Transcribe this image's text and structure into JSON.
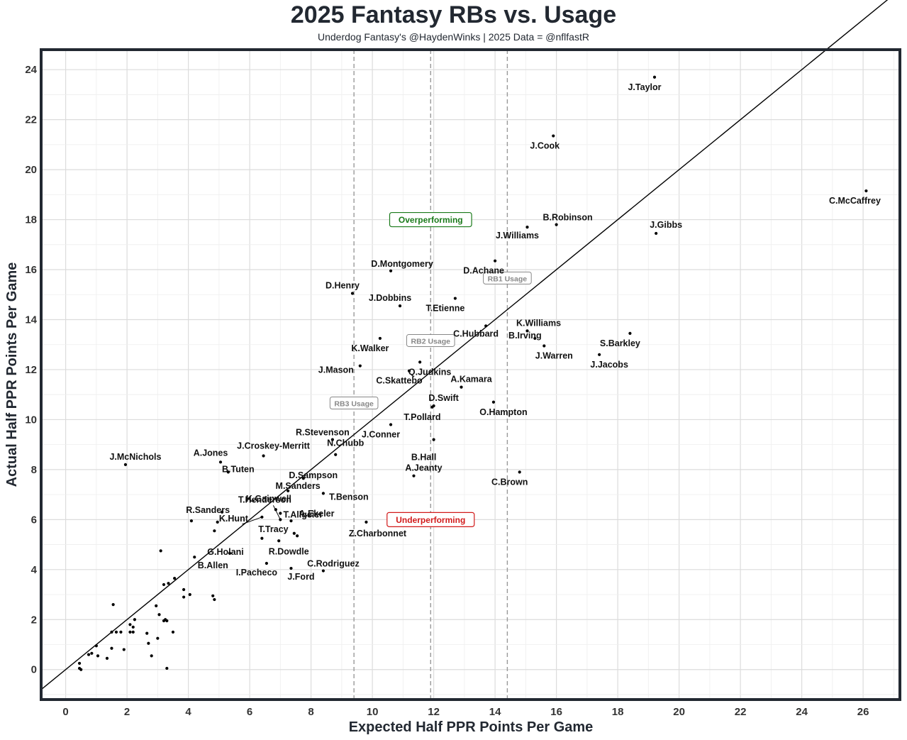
{
  "header": {
    "title": "2025 Fantasy RBs vs. Usage",
    "subtitle": "Underdog Fantasy's @HaydenWinks | 2025 Data = @nflfastR"
  },
  "chart_data": {
    "type": "scatter",
    "title": "2025 Fantasy RBs vs. Usage",
    "subtitle": "Underdog Fantasy's @HaydenWinks | 2025 Data = @nflfastR",
    "xlabel": "Expected Half PPR Points Per Game",
    "ylabel": "Actual Half PPR Points Per Game",
    "xlim": [
      -0.8,
      27.2
    ],
    "ylim": [
      -1.2,
      24.8
    ],
    "xticks": [
      0,
      2,
      4,
      6,
      8,
      10,
      12,
      14,
      16,
      18,
      20,
      22,
      24,
      26
    ],
    "yticks": [
      0,
      2,
      4,
      6,
      8,
      10,
      12,
      14,
      16,
      18,
      20,
      22,
      24
    ],
    "grid": true,
    "reference_line": {
      "slope": 1,
      "intercept": 0
    },
    "usage_thresholds": [
      {
        "label": "RB3 Usage",
        "x": 9.4
      },
      {
        "label": "RB2 Usage",
        "x": 11.9
      },
      {
        "label": "RB1 Usage",
        "x": 14.4
      }
    ],
    "annotations": [
      {
        "text": "Overperforming",
        "color": "#1a7a1a",
        "x": 11.9,
        "y": 18.0
      },
      {
        "text": "Underperforming",
        "color": "#d11a1a",
        "x": 11.9,
        "y": 6.0
      }
    ],
    "points": [
      {
        "name": "J.Taylor",
        "x": 19.2,
        "y": 23.7
      },
      {
        "name": "J.Cook",
        "x": 15.9,
        "y": 21.35
      },
      {
        "name": "C.McCaffrey",
        "x": 26.1,
        "y": 19.15
      },
      {
        "name": "B.Robinson",
        "x": 16.0,
        "y": 17.8
      },
      {
        "name": "J.Williams",
        "x": 15.05,
        "y": 17.7
      },
      {
        "name": "J.Gibbs",
        "x": 19.25,
        "y": 17.45
      },
      {
        "name": "D.Achane",
        "x": 14.0,
        "y": 16.35
      },
      {
        "name": "D.Montgomery",
        "x": 10.6,
        "y": 15.95
      },
      {
        "name": "D.Henry",
        "x": 9.35,
        "y": 15.05
      },
      {
        "name": "T.Etienne",
        "x": 12.7,
        "y": 14.85
      },
      {
        "name": "J.Dobbins",
        "x": 10.9,
        "y": 14.55
      },
      {
        "name": "C.Hubbard",
        "x": 13.7,
        "y": 13.75
      },
      {
        "name": "K.Williams",
        "x": 15.05,
        "y": 13.55
      },
      {
        "name": "S.Barkley",
        "x": 18.4,
        "y": 13.45
      },
      {
        "name": "B.Irving",
        "x": 15.3,
        "y": 13.25
      },
      {
        "name": "K.Walker",
        "x": 10.25,
        "y": 13.25
      },
      {
        "name": "J.Warren",
        "x": 15.6,
        "y": 12.95
      },
      {
        "name": "J.Jacobs",
        "x": 17.4,
        "y": 12.6
      },
      {
        "name": "Q.Judkins",
        "x": 11.55,
        "y": 12.3
      },
      {
        "name": "J.Mason",
        "x": 9.6,
        "y": 12.15
      },
      {
        "name": "C.Skattebo",
        "x": 11.2,
        "y": 11.95
      },
      {
        "name": "A.Kamara",
        "x": 12.9,
        "y": 11.3
      },
      {
        "name": "O.Hampton",
        "x": 13.95,
        "y": 10.7
      },
      {
        "name": "D.Swift",
        "x": 12.0,
        "y": 10.55
      },
      {
        "name": "T.Pollard",
        "x": 11.95,
        "y": 10.5
      },
      {
        "name": "J.Conner",
        "x": 10.6,
        "y": 9.8
      },
      {
        "name": "R.Stevenson",
        "x": 8.7,
        "y": 9.2
      },
      {
        "name": "B.Hall",
        "x": 12.0,
        "y": 9.2
      },
      {
        "name": "N.Chubb",
        "x": 8.8,
        "y": 8.6
      },
      {
        "name": "J.Croskey-Merritt",
        "x": 6.45,
        "y": 8.55
      },
      {
        "name": "A.Jones",
        "x": 5.05,
        "y": 8.3
      },
      {
        "name": "J.McNichols",
        "x": 1.95,
        "y": 8.2
      },
      {
        "name": "B.Tuten",
        "x": 5.3,
        "y": 7.9
      },
      {
        "name": "C.Brown",
        "x": 14.8,
        "y": 7.9
      },
      {
        "name": "A.Jeanty",
        "x": 11.35,
        "y": 7.75
      },
      {
        "name": "D.Sampson",
        "x": 7.75,
        "y": 7.65
      },
      {
        "name": "M.Sanders",
        "x": 7.25,
        "y": 7.15
      },
      {
        "name": "T.Benson",
        "x": 8.4,
        "y": 7.05
      },
      {
        "name": "T.Henderson",
        "x": 7.0,
        "y": 6.0
      },
      {
        "name": "K.Gainwell",
        "x": 6.85,
        "y": 6.4
      },
      {
        "name": "R.Sanders",
        "x": 5.1,
        "y": 6.3
      },
      {
        "name": "T.Allgeier",
        "x": 7.0,
        "y": 6.25
      },
      {
        "name": "K.Hunt",
        "x": 6.4,
        "y": 6.1
      },
      {
        "name": "A.Ekeler",
        "x": 7.35,
        "y": 5.95
      },
      {
        "name": "Z.Charbonnet",
        "x": 9.8,
        "y": 5.9
      },
      {
        "name": "T.Tracy",
        "x": 6.4,
        "y": 5.25
      },
      {
        "name": "R.Dowdle",
        "x": 6.95,
        "y": 5.15
      },
      {
        "name": "G.Holani",
        "x": 5.35,
        "y": 4.65
      },
      {
        "name": "B.Allen",
        "x": 4.2,
        "y": 4.5
      },
      {
        "name": "I.Pacheco",
        "x": 6.55,
        "y": 4.25
      },
      {
        "name": "C.Rodriguez",
        "x": 8.4,
        "y": 3.95
      },
      {
        "name": "J.Ford",
        "x": 7.35,
        "y": 4.05
      },
      {
        "name": "",
        "x": 4.1,
        "y": 5.95
      },
      {
        "name": "",
        "x": 4.85,
        "y": 5.55
      },
      {
        "name": "",
        "x": 4.95,
        "y": 5.9
      },
      {
        "name": "",
        "x": 7.45,
        "y": 5.45
      },
      {
        "name": "",
        "x": 7.55,
        "y": 5.35
      },
      {
        "name": "",
        "x": 3.1,
        "y": 4.75
      },
      {
        "name": "",
        "x": 3.55,
        "y": 3.65
      },
      {
        "name": "",
        "x": 3.2,
        "y": 3.4
      },
      {
        "name": "",
        "x": 3.35,
        "y": 3.45
      },
      {
        "name": "",
        "x": 3.85,
        "y": 3.2
      },
      {
        "name": "",
        "x": 3.85,
        "y": 2.9
      },
      {
        "name": "",
        "x": 4.05,
        "y": 3.0
      },
      {
        "name": "",
        "x": 4.8,
        "y": 2.95
      },
      {
        "name": "",
        "x": 4.85,
        "y": 2.8
      },
      {
        "name": "",
        "x": 1.55,
        "y": 2.6
      },
      {
        "name": "",
        "x": 2.95,
        "y": 2.55
      },
      {
        "name": "",
        "x": 3.05,
        "y": 2.2
      },
      {
        "name": "",
        "x": 2.25,
        "y": 2.0
      },
      {
        "name": "",
        "x": 3.2,
        "y": 1.95
      },
      {
        "name": "",
        "x": 3.25,
        "y": 2.0
      },
      {
        "name": "",
        "x": 3.3,
        "y": 1.95
      },
      {
        "name": "",
        "x": 2.1,
        "y": 1.8
      },
      {
        "name": "",
        "x": 2.2,
        "y": 1.7
      },
      {
        "name": "",
        "x": 1.5,
        "y": 1.5
      },
      {
        "name": "",
        "x": 1.65,
        "y": 1.5
      },
      {
        "name": "",
        "x": 1.8,
        "y": 1.5
      },
      {
        "name": "",
        "x": 2.1,
        "y": 1.5
      },
      {
        "name": "",
        "x": 2.2,
        "y": 1.5
      },
      {
        "name": "",
        "x": 2.65,
        "y": 1.45
      },
      {
        "name": "",
        "x": 3.5,
        "y": 1.5
      },
      {
        "name": "",
        "x": 3.0,
        "y": 1.25
      },
      {
        "name": "",
        "x": 2.7,
        "y": 1.05
      },
      {
        "name": "",
        "x": 1.0,
        "y": 0.95
      },
      {
        "name": "",
        "x": 1.5,
        "y": 0.85
      },
      {
        "name": "",
        "x": 1.9,
        "y": 0.8
      },
      {
        "name": "",
        "x": 0.85,
        "y": 0.65
      },
      {
        "name": "",
        "x": 0.75,
        "y": 0.6
      },
      {
        "name": "",
        "x": 1.05,
        "y": 0.55
      },
      {
        "name": "",
        "x": 2.8,
        "y": 0.55
      },
      {
        "name": "",
        "x": 1.35,
        "y": 0.45
      },
      {
        "name": "",
        "x": 0.45,
        "y": 0.25
      },
      {
        "name": "",
        "x": 0.45,
        "y": 0.05
      },
      {
        "name": "",
        "x": 0.5,
        "y": 0.0
      },
      {
        "name": "",
        "x": 3.3,
        "y": 0.05
      }
    ]
  }
}
